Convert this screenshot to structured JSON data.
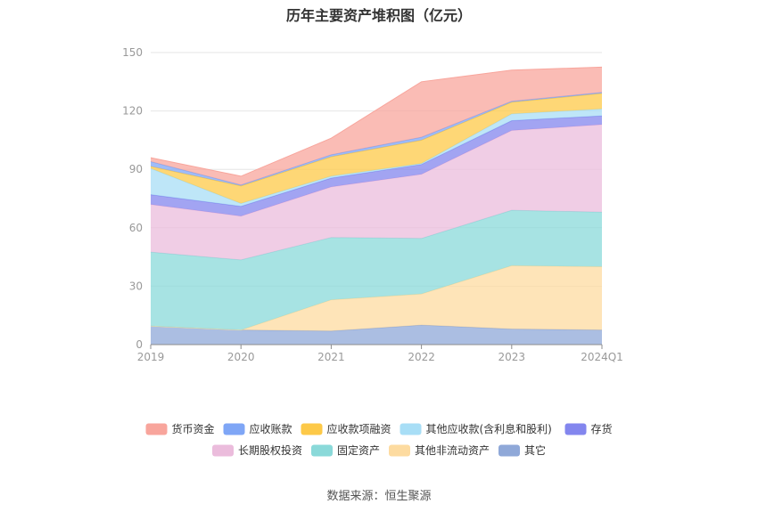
{
  "header": {
    "title": "历年主要资产堆积图（亿元）"
  },
  "footer": {
    "source": "数据来源：恒生聚源"
  },
  "chart_data": {
    "type": "area",
    "stacked": true,
    "title": "历年主要资产堆积图（亿元）",
    "xlabel": "",
    "ylabel": "",
    "categories": [
      "2019",
      "2020",
      "2021",
      "2022",
      "2023",
      "2024Q1"
    ],
    "ylim": [
      0,
      150
    ],
    "yticks": [
      0,
      30,
      60,
      90,
      120,
      150
    ],
    "grid": true,
    "legend_position": "bottom",
    "series": [
      {
        "name": "其它",
        "color": "#8fa8d8",
        "values": [
          9.5,
          7.5,
          7,
          10,
          8,
          7.5
        ]
      },
      {
        "name": "其他非流动资产",
        "color": "#fddba0",
        "values": [
          0,
          0,
          16,
          16,
          32.5,
          32.5
        ]
      },
      {
        "name": "固定资产",
        "color": "#8ad9d9",
        "values": [
          38,
          36,
          32,
          28.5,
          28.5,
          28
        ]
      },
      {
        "name": "长期股权投资",
        "color": "#ebbcdc",
        "values": [
          24.5,
          22.5,
          26,
          33,
          41,
          45
        ]
      },
      {
        "name": "存货",
        "color": "#8386ee",
        "values": [
          5,
          5,
          4.5,
          5,
          5,
          4.5
        ]
      },
      {
        "name": "其他应收款(含利息和股利)",
        "color": "#a8def6",
        "values": [
          13.5,
          1.5,
          1,
          0.5,
          3.5,
          3.5
        ]
      },
      {
        "name": "应收款项融资",
        "color": "#fdc948",
        "values": [
          1,
          9,
          10,
          12,
          6,
          8
        ]
      },
      {
        "name": "应收账款",
        "color": "#7fa6f6",
        "values": [
          2.5,
          0.5,
          1,
          1.5,
          0.5,
          0.5
        ]
      },
      {
        "name": "货币资金",
        "color": "#f8a59c",
        "values": [
          2,
          4.5,
          8.5,
          28.5,
          16,
          13
        ]
      }
    ],
    "legend_order": [
      "货币资金",
      "应收账款",
      "应收款项融资",
      "其他应收款(含利息和股利)",
      "存货",
      "长期股权投资",
      "固定资产",
      "其他非流动资产",
      "其它"
    ]
  }
}
